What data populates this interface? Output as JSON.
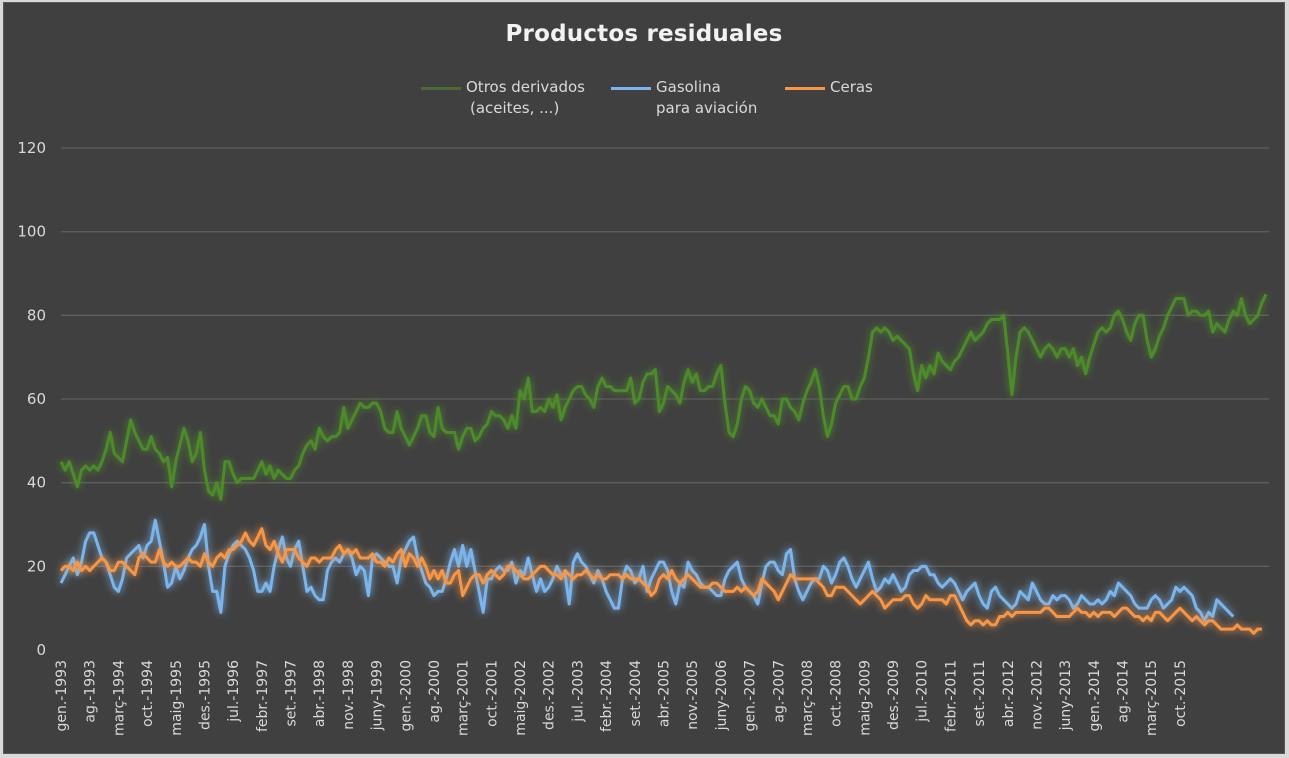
{
  "chart_data": {
    "type": "line",
    "title": "Productos residuales",
    "xlabel": "",
    "ylabel": "",
    "ylim": [
      0,
      120
    ],
    "yticks": [
      0,
      20,
      40,
      60,
      80,
      100,
      120
    ],
    "grid": "horizontal",
    "legend": "top-center",
    "x_start": "gen.-1993",
    "x_end": "des.-2015",
    "x_frequency": "monthly",
    "xtick_labels": [
      "gen.-1993",
      "ag.-1993",
      "març-1994",
      "oct.-1994",
      "maig-1995",
      "des.-1995",
      "jul.-1996",
      "febr.-1997",
      "set.-1997",
      "abr.-1998",
      "nov.-1998",
      "juny-1999",
      "gen.-2000",
      "ag.-2000",
      "març-2001",
      "oct.-2001",
      "maig-2002",
      "des.-2002",
      "jul.-2003",
      "febr.-2004",
      "set.-2004",
      "abr.-2005",
      "nov.-2005",
      "juny-2006",
      "gen.-2007",
      "ag.-2007",
      "març-2008",
      "oct.-2008",
      "maig-2009",
      "des.-2009",
      "jul.-2010",
      "febr.-2011",
      "set.-2011",
      "abr.-2012",
      "nov.-2012",
      "juny-2013",
      "gen.-2014",
      "ag.-2014",
      "març-2015",
      "oct.-2015"
    ],
    "series": [
      {
        "name": "Otros derivados (aceites, ...)",
        "legend_lines": [
          "Otros derivados",
          "(aceites, ...)"
        ],
        "color": "#4e8a2a",
        "values": [
          45,
          43,
          45,
          42,
          39,
          43,
          44,
          43,
          44,
          43,
          45,
          48,
          52,
          47,
          46,
          45,
          50,
          55,
          52,
          50,
          48,
          48,
          51,
          48,
          47,
          45,
          46,
          39,
          45,
          49,
          53,
          50,
          45,
          47,
          52,
          43,
          38,
          37,
          40,
          36,
          45,
          45,
          42,
          40,
          41,
          41,
          41,
          41,
          43,
          45,
          42,
          44,
          41,
          43,
          42,
          41,
          41,
          43,
          44,
          47,
          49,
          50,
          48,
          53,
          51,
          50,
          51,
          51,
          52,
          58,
          53,
          55,
          57,
          59,
          58,
          58,
          59,
          59,
          57,
          53,
          52,
          52,
          57,
          53,
          51,
          49,
          51,
          53,
          56,
          56,
          52,
          51,
          58,
          53,
          52,
          52,
          52,
          48,
          51,
          53,
          53,
          50,
          51,
          53,
          54,
          57,
          56,
          56,
          55,
          53,
          56,
          53,
          62,
          60,
          65,
          57,
          57,
          58,
          57,
          60,
          58,
          61,
          55,
          58,
          60,
          62,
          63,
          63,
          61,
          60,
          58,
          63,
          65,
          63,
          63,
          62,
          62,
          62,
          62,
          65,
          59,
          60,
          64,
          66,
          66,
          67,
          57,
          59,
          63,
          62,
          61,
          59,
          64,
          67,
          64,
          66,
          62,
          62,
          63,
          63,
          66,
          68,
          59,
          52,
          51,
          54,
          60,
          63,
          62,
          59,
          58,
          60,
          58,
          56,
          56,
          54,
          60,
          60,
          58,
          57,
          55,
          59,
          62,
          64,
          67,
          63,
          56,
          51,
          54,
          59,
          61,
          63,
          63,
          60,
          60,
          63,
          65,
          70,
          76,
          77,
          76,
          77,
          76,
          74,
          75,
          74,
          73,
          72,
          66,
          62,
          68,
          65,
          68,
          66,
          71,
          69,
          68,
          67,
          69,
          70,
          72,
          74,
          76,
          74,
          75,
          76,
          78,
          79,
          79,
          79,
          80,
          71,
          61,
          70,
          76,
          77,
          76,
          74,
          72,
          70,
          72,
          73,
          72,
          70,
          72,
          72,
          70,
          72,
          68,
          70,
          66,
          70,
          73,
          76,
          77,
          76,
          77,
          80,
          81,
          79,
          76,
          74,
          78,
          80,
          80,
          74,
          70,
          72,
          75,
          77,
          80,
          82,
          84,
          84,
          84,
          80,
          81,
          81,
          80,
          80,
          81,
          76,
          78,
          77,
          76,
          79,
          81,
          80,
          84,
          80,
          78,
          79,
          80,
          83,
          85
        ],
        "values_tail_note": "",
        "note": ""
      },
      {
        "name": "Gasolina para aviación",
        "legend_lines": [
          "Gasolina",
          "para aviación"
        ],
        "color": "#7cb5ec",
        "values": [
          16,
          18,
          20,
          22,
          18,
          21,
          26,
          28,
          28,
          25,
          22,
          21,
          18,
          15,
          14,
          17,
          22,
          23,
          24,
          25,
          22,
          25,
          26,
          31,
          26,
          21,
          15,
          16,
          20,
          17,
          19,
          22,
          24,
          25,
          27,
          30,
          20,
          14,
          14,
          9,
          20,
          23,
          25,
          26,
          25,
          24,
          22,
          19,
          14,
          14,
          16,
          14,
          20,
          24,
          27,
          22,
          20,
          24,
          26,
          20,
          14,
          15,
          13,
          12,
          12,
          19,
          21,
          22,
          21,
          23,
          24,
          22,
          18,
          20,
          19,
          13,
          22,
          23,
          22,
          21,
          20,
          20,
          16,
          22,
          24,
          26,
          27,
          22,
          19,
          16,
          15,
          13,
          14,
          14,
          17,
          21,
          24,
          20,
          25,
          20,
          24,
          19,
          14,
          9,
          17,
          17,
          19,
          20,
          19,
          19,
          21,
          16,
          19,
          18,
          22,
          18,
          14,
          17,
          14,
          15,
          17,
          20,
          18,
          18,
          11,
          21,
          23,
          21,
          20,
          18,
          16,
          19,
          17,
          14,
          12,
          10,
          10,
          17,
          20,
          19,
          16,
          17,
          20,
          14,
          17,
          19,
          21,
          21,
          19,
          14,
          11,
          16,
          15,
          21,
          19,
          18,
          16,
          15,
          15,
          14,
          13,
          13,
          17,
          19,
          20,
          21,
          17,
          15,
          14,
          13,
          11,
          16,
          20,
          21,
          21,
          19,
          18,
          23,
          24,
          17,
          14,
          12,
          14,
          16,
          17,
          17,
          20,
          19,
          16,
          18,
          21,
          22,
          20,
          17,
          15,
          17,
          19,
          21,
          17,
          14,
          15,
          17,
          16,
          18,
          16,
          14,
          15,
          18,
          19,
          19,
          20,
          20,
          18,
          18,
          16,
          15,
          16,
          17,
          16,
          14,
          12,
          14,
          15,
          16,
          13,
          11,
          10,
          14,
          15,
          13,
          12,
          11,
          10,
          11,
          14,
          13,
          12,
          16,
          14,
          12,
          11,
          11,
          13,
          12,
          13,
          13,
          12,
          10,
          11,
          13,
          12,
          11,
          11,
          12,
          11,
          12,
          14,
          13,
          16,
          15,
          14,
          13,
          11,
          10,
          10,
          10,
          12,
          13,
          12,
          10,
          11,
          12,
          15,
          14,
          15,
          14,
          13,
          10,
          9,
          7,
          9,
          8,
          12,
          11,
          10,
          9,
          8
        ],
        "note": ""
      },
      {
        "name": "Ceras",
        "legend_lines": [
          "Ceras"
        ],
        "color": "#f79646",
        "values": [
          19,
          20,
          20,
          19,
          21,
          19,
          20,
          19,
          20,
          21,
          22,
          21,
          19,
          19,
          21,
          21,
          20,
          19,
          18,
          22,
          23,
          22,
          21,
          21,
          24,
          21,
          20,
          21,
          20,
          20,
          21,
          22,
          21,
          21,
          20,
          23,
          21,
          20,
          22,
          23,
          22,
          24,
          24,
          25,
          26,
          28,
          26,
          25,
          27,
          29,
          25,
          24,
          26,
          23,
          21,
          24,
          24,
          24,
          22,
          21,
          20,
          22,
          22,
          21,
          22,
          22,
          22,
          24,
          25,
          23,
          24,
          23,
          24,
          22,
          22,
          22,
          23,
          21,
          21,
          20,
          22,
          21,
          23,
          24,
          20,
          23,
          22,
          20,
          22,
          20,
          17,
          19,
          17,
          19,
          16,
          16,
          18,
          19,
          13,
          15,
          17,
          18,
          18,
          16,
          18,
          19,
          18,
          17,
          18,
          20,
          20,
          19,
          18,
          17,
          17,
          18,
          19,
          20,
          20,
          19,
          18,
          18,
          17,
          19,
          18,
          17,
          18,
          18,
          19,
          18,
          17,
          18,
          17,
          17,
          18,
          18,
          18,
          17,
          18,
          17,
          17,
          17,
          16,
          15,
          13,
          14,
          17,
          18,
          17,
          19,
          17,
          16,
          17,
          18,
          17,
          16,
          15,
          15,
          15,
          16,
          16,
          15,
          14,
          14,
          14,
          15,
          14,
          15,
          14,
          13,
          14,
          17,
          16,
          15,
          14,
          12,
          14,
          16,
          18,
          17,
          17,
          17,
          17,
          17,
          17,
          16,
          15,
          13,
          13,
          15,
          15,
          15,
          14,
          13,
          12,
          11,
          12,
          13,
          14,
          13,
          12,
          10,
          11,
          12,
          12,
          12,
          13,
          13,
          11,
          10,
          11,
          13,
          12,
          12,
          12,
          12,
          11,
          13,
          13,
          11,
          9,
          7,
          6,
          7,
          7,
          6,
          7,
          6,
          6,
          8,
          8,
          9,
          8,
          9,
          9,
          9,
          9,
          9,
          9,
          9,
          10,
          10,
          9,
          8,
          8,
          8,
          8,
          9,
          10,
          9,
          9,
          8,
          9,
          8,
          9,
          9,
          9,
          8,
          9,
          10,
          10,
          9,
          8,
          8,
          7,
          8,
          7,
          9,
          9,
          8,
          7,
          8,
          9,
          10,
          9,
          8,
          7,
          8,
          7,
          6,
          7,
          7,
          6,
          5,
          5,
          5,
          5,
          6,
          5,
          5,
          5,
          4,
          5,
          5
        ]
      }
    ]
  }
}
